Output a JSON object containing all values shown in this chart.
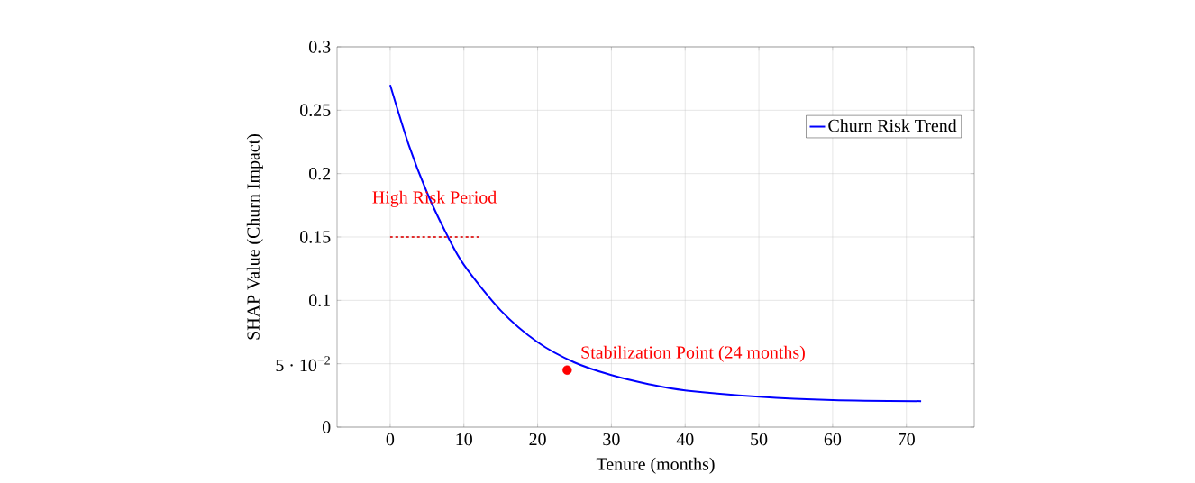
{
  "chart_data": {
    "type": "line",
    "xlabel": "Tenure (months)",
    "ylabel": "SHAP Value (Churn Impact)",
    "series": [
      {
        "name": "Churn Risk Trend",
        "color": "#0000ff",
        "x": [
          0,
          2.5,
          5,
          7.5,
          10,
          15,
          20,
          25,
          30,
          35,
          40,
          50,
          60,
          72
        ],
        "values": [
          0.27,
          0.223,
          0.185,
          0.154,
          0.128,
          0.092,
          0.067,
          0.051,
          0.041,
          0.034,
          0.029,
          0.024,
          0.0214,
          0.0205
        ]
      },
      {
        "type": "line",
        "line_style": "dashed",
        "color": "#e03030",
        "x": [
          0,
          12
        ],
        "values": [
          0.15,
          0.15
        ]
      },
      {
        "type": "scatter",
        "color": "#ff0000",
        "x": [
          24
        ],
        "values": [
          0.045
        ]
      }
    ],
    "annotations": [
      {
        "text": "High Risk Period",
        "x": 6,
        "y": 0.18
      },
      {
        "text": "Stabilization Point (24 months)",
        "x": 24,
        "y": 0.045
      }
    ],
    "xlim": [
      -7.2,
      79.2
    ],
    "ylim": [
      0,
      0.3
    ],
    "xticks": [
      0,
      10,
      20,
      30,
      40,
      50,
      60,
      70
    ],
    "yticks": [
      0,
      {
        "value": 0.05,
        "label": "5 · 10$^{−2}$"
      },
      0.1,
      0.15,
      0.2,
      0.25,
      0.3
    ],
    "grid": true,
    "legend": "top right"
  }
}
